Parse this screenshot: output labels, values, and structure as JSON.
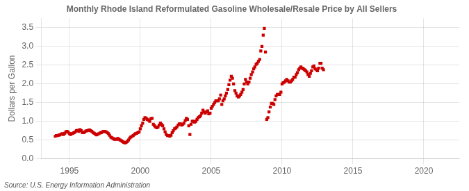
{
  "chart_data": {
    "type": "scatter",
    "title": "Monthly Rhode Island Reformulated Gasoline Wholesale/Resale Price by All Sellers",
    "ylabel": "Dollars per Gallon",
    "annotations": [
      "Source: U.S. Energy Information Administration"
    ],
    "color": "#cc0000",
    "marker": "square",
    "grid": true,
    "xlim": [
      1993.0,
      2022.5
    ],
    "ylim": [
      0.0,
      3.75
    ],
    "xticks": [
      1995,
      2000,
      2005,
      2010,
      2015,
      2020
    ],
    "yticks": [
      {
        "value": 0.0,
        "label": "0.0"
      },
      0.5,
      {
        "value": 1.0,
        "label": "1.0"
      },
      1.5,
      {
        "value": 2.0,
        "label": "2.0"
      },
      2.5,
      {
        "value": 3.0,
        "label": "3.0"
      },
      3.5
    ],
    "x": [
      1994.0,
      1994.08,
      1994.17,
      1994.25,
      1994.33,
      1994.42,
      1994.5,
      1994.58,
      1994.67,
      1994.75,
      1994.83,
      1994.92,
      1995.0,
      1995.08,
      1995.17,
      1995.25,
      1995.33,
      1995.42,
      1995.5,
      1995.58,
      1995.67,
      1995.75,
      1995.83,
      1995.92,
      1996.0,
      1996.08,
      1996.17,
      1996.25,
      1996.33,
      1996.42,
      1996.5,
      1996.58,
      1996.67,
      1996.75,
      1996.83,
      1996.92,
      1997.0,
      1997.08,
      1997.17,
      1997.25,
      1997.33,
      1997.42,
      1997.5,
      1997.58,
      1997.67,
      1997.75,
      1997.83,
      1997.92,
      1998.0,
      1998.08,
      1998.17,
      1998.25,
      1998.33,
      1998.42,
      1998.5,
      1998.58,
      1998.67,
      1998.75,
      1998.83,
      1998.92,
      1999.0,
      1999.08,
      1999.17,
      1999.25,
      1999.33,
      1999.42,
      1999.5,
      1999.58,
      1999.67,
      1999.75,
      1999.83,
      1999.92,
      2000.0,
      2000.08,
      2000.17,
      2000.25,
      2000.33,
      2000.42,
      2000.5,
      2000.58,
      2000.67,
      2000.75,
      2000.83,
      2000.92,
      2001.0,
      2001.08,
      2001.17,
      2001.25,
      2001.33,
      2001.42,
      2001.5,
      2001.58,
      2001.67,
      2001.75,
      2001.83,
      2001.92,
      2002.0,
      2002.08,
      2002.17,
      2002.25,
      2002.33,
      2002.42,
      2002.5,
      2002.58,
      2002.67,
      2002.75,
      2002.83,
      2002.92,
      2003.0,
      2003.08,
      2003.17,
      2003.25,
      2003.33,
      2003.42,
      2003.5,
      2003.58,
      2003.67,
      2003.75,
      2003.83,
      2003.92,
      2004.0,
      2004.08,
      2004.17,
      2004.25,
      2004.33,
      2004.42,
      2004.5,
      2004.58,
      2004.67,
      2004.75,
      2004.83,
      2004.92,
      2005.0,
      2005.08,
      2005.17,
      2005.25,
      2005.33,
      2005.42,
      2005.5,
      2005.58,
      2005.67,
      2005.75,
      2005.83,
      2005.92,
      2006.0,
      2006.08,
      2006.17,
      2006.25,
      2006.33,
      2006.42,
      2006.5,
      2006.58,
      2006.67,
      2006.75,
      2006.83,
      2006.92,
      2007.0,
      2007.08,
      2007.17,
      2007.25,
      2007.33,
      2007.42,
      2007.5,
      2007.58,
      2007.67,
      2007.75,
      2007.83,
      2007.92,
      2008.0,
      2008.08,
      2008.17,
      2008.25,
      2008.33,
      2008.42,
      2008.5,
      2008.58,
      2008.67,
      2008.75,
      2008.83,
      2008.92,
      2009.0,
      2009.08,
      2009.17,
      2009.25,
      2009.33,
      2009.42,
      2009.5,
      2009.58,
      2009.67,
      2009.75,
      2009.83,
      2009.92,
      2010.0,
      2010.08,
      2010.17,
      2010.25,
      2010.33,
      2010.42,
      2010.5,
      2010.58,
      2010.67,
      2010.75,
      2010.83,
      2010.92,
      2011.0,
      2011.08,
      2011.17,
      2011.25,
      2011.33,
      2011.42,
      2011.5,
      2011.58,
      2011.67,
      2011.75,
      2011.83,
      2011.92,
      2012.0,
      2012.08,
      2012.17,
      2012.25,
      2012.33,
      2012.42,
      2012.5,
      2012.58,
      2012.67,
      2012.75,
      2012.83,
      2012.92
    ],
    "values": [
      0.6,
      0.62,
      0.62,
      0.63,
      0.64,
      0.66,
      0.67,
      0.65,
      0.68,
      0.72,
      0.73,
      0.71,
      0.67,
      0.65,
      0.67,
      0.68,
      0.7,
      0.72,
      0.75,
      0.76,
      0.73,
      0.78,
      0.75,
      0.7,
      0.7,
      0.72,
      0.74,
      0.75,
      0.76,
      0.77,
      0.75,
      0.73,
      0.7,
      0.68,
      0.66,
      0.64,
      0.66,
      0.67,
      0.69,
      0.7,
      0.72,
      0.73,
      0.73,
      0.72,
      0.7,
      0.67,
      0.63,
      0.58,
      0.56,
      0.54,
      0.52,
      0.53,
      0.52,
      0.54,
      0.52,
      0.5,
      0.48,
      0.46,
      0.44,
      0.42,
      0.44,
      0.46,
      0.5,
      0.55,
      0.58,
      0.6,
      0.62,
      0.65,
      0.67,
      0.68,
      0.7,
      0.72,
      0.8,
      0.88,
      0.95,
      1.05,
      1.1,
      1.08,
      1.05,
      1.03,
      1.0,
      1.07,
      1.08,
      0.92,
      0.88,
      0.85,
      0.83,
      0.85,
      0.9,
      0.95,
      0.92,
      0.88,
      0.8,
      0.72,
      0.65,
      0.62,
      0.62,
      0.6,
      0.63,
      0.7,
      0.75,
      0.8,
      0.82,
      0.85,
      0.9,
      0.93,
      0.93,
      0.9,
      0.92,
      0.95,
      1.02,
      1.08,
      1.05,
      0.88,
      0.65,
      0.92,
      1.0,
      1.0,
      0.98,
      1.0,
      1.05,
      1.1,
      1.12,
      1.15,
      1.22,
      1.3,
      1.25,
      1.22,
      1.25,
      1.28,
      1.2,
      1.22,
      1.35,
      1.4,
      1.45,
      1.5,
      1.55,
      1.55,
      1.55,
      1.6,
      1.7,
      1.45,
      1.55,
      1.6,
      1.68,
      1.75,
      1.85,
      1.98,
      2.1,
      2.2,
      2.15,
      2.0,
      1.82,
      1.75,
      1.68,
      1.65,
      1.68,
      1.72,
      1.78,
      1.85,
      2.0,
      2.12,
      2.05,
      2.0,
      2.05,
      2.15,
      2.25,
      2.32,
      2.4,
      2.45,
      2.52,
      2.55,
      2.6,
      2.65,
      2.88,
      3.0,
      3.3,
      3.48,
      2.85,
      1.05,
      1.1,
      1.25,
      1.38,
      1.48,
      1.48,
      1.45,
      1.58,
      1.68,
      1.72,
      1.72,
      1.72,
      1.78,
      2.0,
      2.03,
      2.05,
      2.08,
      2.12,
      2.08,
      2.05,
      2.05,
      2.08,
      2.12,
      2.18,
      2.18,
      2.25,
      2.3,
      2.38,
      2.42,
      2.45,
      2.42,
      2.4,
      2.38,
      2.35,
      2.32,
      2.25,
      2.2,
      2.28,
      2.35,
      2.45,
      2.48,
      2.4,
      2.38,
      2.35,
      2.42,
      2.55,
      2.55,
      2.42,
      2.38
    ]
  }
}
